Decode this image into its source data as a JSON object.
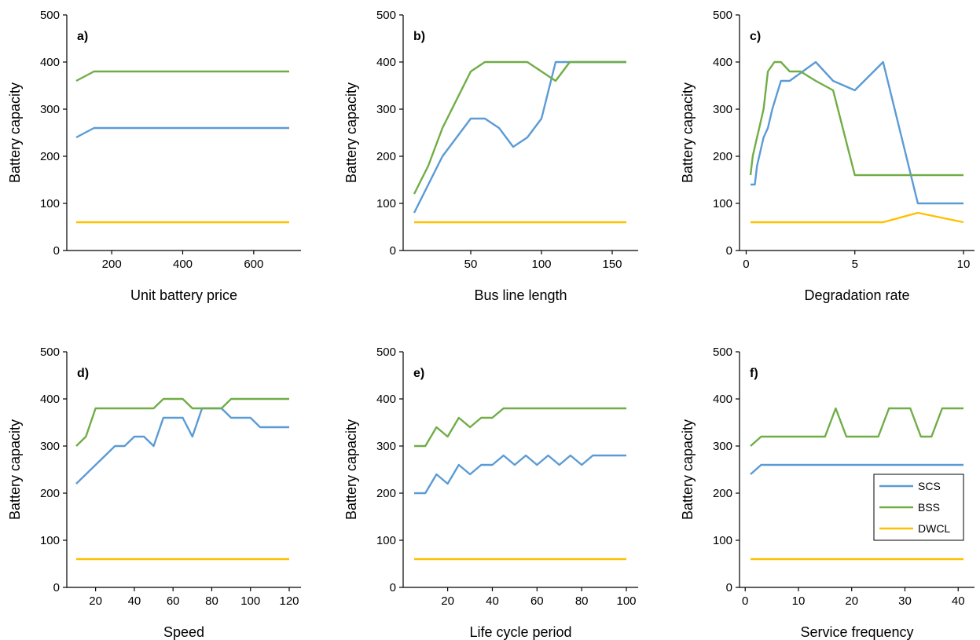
{
  "chart_data": [
    {
      "type": "line",
      "panel_tag": "a)",
      "xlabel": "Unit battery price",
      "ylabel": "Battery capacity",
      "xlim": [
        100,
        700
      ],
      "ylim": [
        0,
        500
      ],
      "xticks": [
        200,
        400,
        600
      ],
      "yticks": [
        0,
        100,
        200,
        300,
        400,
        500
      ],
      "series": [
        {
          "name": "SCS",
          "color": "#5b9bd5",
          "x": [
            100,
            150,
            700
          ],
          "y": [
            240,
            260,
            260
          ]
        },
        {
          "name": "BSS",
          "color": "#70ad47",
          "x": [
            100,
            150,
            700
          ],
          "y": [
            360,
            380,
            380
          ]
        },
        {
          "name": "DWCL",
          "color": "#ffc000",
          "x": [
            100,
            700
          ],
          "y": [
            60,
            60
          ]
        }
      ]
    },
    {
      "type": "line",
      "panel_tag": "b)",
      "xlabel": "Bus line length",
      "ylabel": "Battery capacity",
      "xlim": [
        10,
        160
      ],
      "ylim": [
        0,
        500
      ],
      "xticks": [
        50,
        100,
        150
      ],
      "yticks": [
        0,
        100,
        200,
        300,
        400,
        500
      ],
      "series": [
        {
          "name": "SCS",
          "color": "#5b9bd5",
          "x": [
            10,
            30,
            50,
            60,
            70,
            80,
            90,
            100,
            110,
            120,
            160
          ],
          "y": [
            80,
            200,
            280,
            280,
            260,
            220,
            240,
            280,
            400,
            400,
            400
          ]
        },
        {
          "name": "BSS",
          "color": "#70ad47",
          "x": [
            10,
            20,
            30,
            50,
            60,
            90,
            110,
            120,
            160
          ],
          "y": [
            120,
            180,
            260,
            380,
            400,
            400,
            360,
            400,
            400
          ]
        },
        {
          "name": "DWCL",
          "color": "#ffc000",
          "x": [
            10,
            160
          ],
          "y": [
            60,
            60
          ]
        }
      ]
    },
    {
      "type": "line",
      "panel_tag": "c)",
      "xlabel": "Degradation rate",
      "ylabel": "Battery capacity",
      "xlim": [
        0.2,
        10
      ],
      "ylim": [
        0,
        500
      ],
      "xticks": [
        0,
        5,
        10
      ],
      "yticks": [
        0,
        100,
        200,
        300,
        400,
        500
      ],
      "series": [
        {
          "name": "SCS",
          "color": "#5b9bd5",
          "x": [
            0.2,
            0.4,
            0.5,
            0.6,
            0.8,
            1.0,
            1.2,
            1.6,
            2.0,
            3.2,
            4.0,
            5.0,
            6.3,
            7.9,
            10
          ],
          "y": [
            140,
            140,
            180,
            200,
            240,
            260,
            300,
            360,
            360,
            400,
            360,
            340,
            400,
            100,
            100
          ]
        },
        {
          "name": "BSS",
          "color": "#70ad47",
          "x": [
            0.2,
            0.3,
            0.4,
            0.5,
            0.6,
            0.8,
            1.0,
            1.3,
            1.6,
            2.0,
            2.5,
            3.2,
            4.0,
            5.0,
            10
          ],
          "y": [
            160,
            200,
            220,
            240,
            260,
            300,
            380,
            400,
            400,
            380,
            380,
            360,
            340,
            160,
            160
          ]
        },
        {
          "name": "DWCL",
          "color": "#ffc000",
          "x": [
            0.2,
            6.3,
            7.9,
            10
          ],
          "y": [
            60,
            60,
            80,
            60
          ]
        }
      ]
    },
    {
      "type": "line",
      "panel_tag": "d)",
      "xlabel": "Speed",
      "ylabel": "Battery capacity",
      "xlim": [
        10,
        120
      ],
      "ylim": [
        0,
        500
      ],
      "xticks": [
        20,
        40,
        60,
        80,
        100,
        120
      ],
      "yticks": [
        0,
        100,
        200,
        300,
        400,
        500
      ],
      "series": [
        {
          "name": "SCS",
          "color": "#5b9bd5",
          "x": [
            10,
            30,
            35,
            40,
            45,
            50,
            55,
            60,
            65,
            70,
            75,
            80,
            85,
            90,
            95,
            100,
            105,
            110,
            115,
            120
          ],
          "y": [
            220,
            300,
            300,
            320,
            320,
            300,
            360,
            360,
            360,
            320,
            380,
            380,
            380,
            360,
            360,
            360,
            340,
            340,
            340,
            340
          ]
        },
        {
          "name": "BSS",
          "color": "#70ad47",
          "x": [
            10,
            15,
            20,
            25,
            30,
            35,
            40,
            45,
            50,
            55,
            60,
            65,
            70,
            75,
            80,
            85,
            90,
            95,
            100,
            105,
            110,
            115,
            120
          ],
          "y": [
            300,
            320,
            380,
            380,
            380,
            380,
            380,
            380,
            380,
            400,
            400,
            400,
            380,
            380,
            380,
            380,
            400,
            400,
            400,
            400,
            400,
            400,
            400
          ]
        },
        {
          "name": "DWCL",
          "color": "#ffc000",
          "x": [
            10,
            120
          ],
          "y": [
            60,
            60
          ]
        }
      ]
    },
    {
      "type": "line",
      "panel_tag": "e)",
      "xlabel": "Life cycle period",
      "ylabel": "Battery capacity",
      "xlim": [
        5,
        100
      ],
      "ylim": [
        0,
        500
      ],
      "xticks": [
        20,
        40,
        60,
        80,
        100
      ],
      "yticks": [
        0,
        100,
        200,
        300,
        400,
        500
      ],
      "series": [
        {
          "name": "SCS",
          "color": "#5b9bd5",
          "x": [
            5,
            10,
            15,
            20,
            25,
            30,
            35,
            40,
            45,
            50,
            55,
            60,
            65,
            70,
            75,
            80,
            85,
            90,
            95,
            100
          ],
          "y": [
            200,
            200,
            240,
            220,
            260,
            240,
            260,
            260,
            280,
            260,
            280,
            260,
            280,
            260,
            280,
            260,
            280,
            280,
            280,
            280
          ]
        },
        {
          "name": "BSS",
          "color": "#70ad47",
          "x": [
            5,
            10,
            15,
            20,
            25,
            30,
            35,
            40,
            45,
            100
          ],
          "y": [
            300,
            300,
            340,
            320,
            360,
            340,
            360,
            360,
            380,
            380
          ]
        },
        {
          "name": "DWCL",
          "color": "#ffc000",
          "x": [
            5,
            100
          ],
          "y": [
            60,
            60
          ]
        }
      ]
    },
    {
      "type": "line",
      "panel_tag": "f)",
      "xlabel": "Service frequency",
      "ylabel": "Battery capacity",
      "xlim": [
        1,
        41
      ],
      "ylim": [
        0,
        500
      ],
      "xticks": [
        0,
        10,
        20,
        30,
        40
      ],
      "yticks": [
        0,
        100,
        200,
        300,
        400,
        500
      ],
      "series": [
        {
          "name": "SCS",
          "color": "#5b9bd5",
          "x": [
            1,
            3,
            41
          ],
          "y": [
            240,
            260,
            260
          ]
        },
        {
          "name": "BSS",
          "color": "#70ad47",
          "x": [
            1,
            3,
            15,
            17,
            19,
            25,
            27,
            31,
            33,
            35,
            37,
            41
          ],
          "y": [
            300,
            320,
            320,
            380,
            320,
            320,
            380,
            380,
            320,
            320,
            380,
            380
          ]
        },
        {
          "name": "DWCL",
          "color": "#ffc000",
          "x": [
            1,
            41
          ],
          "y": [
            60,
            60
          ]
        }
      ],
      "legend": {
        "placement": "lower-right",
        "entries": [
          {
            "label": "SCS",
            "color": "#5b9bd5"
          },
          {
            "label": "BSS",
            "color": "#70ad47"
          },
          {
            "label": "DWCL",
            "color": "#ffc000"
          }
        ]
      }
    }
  ]
}
